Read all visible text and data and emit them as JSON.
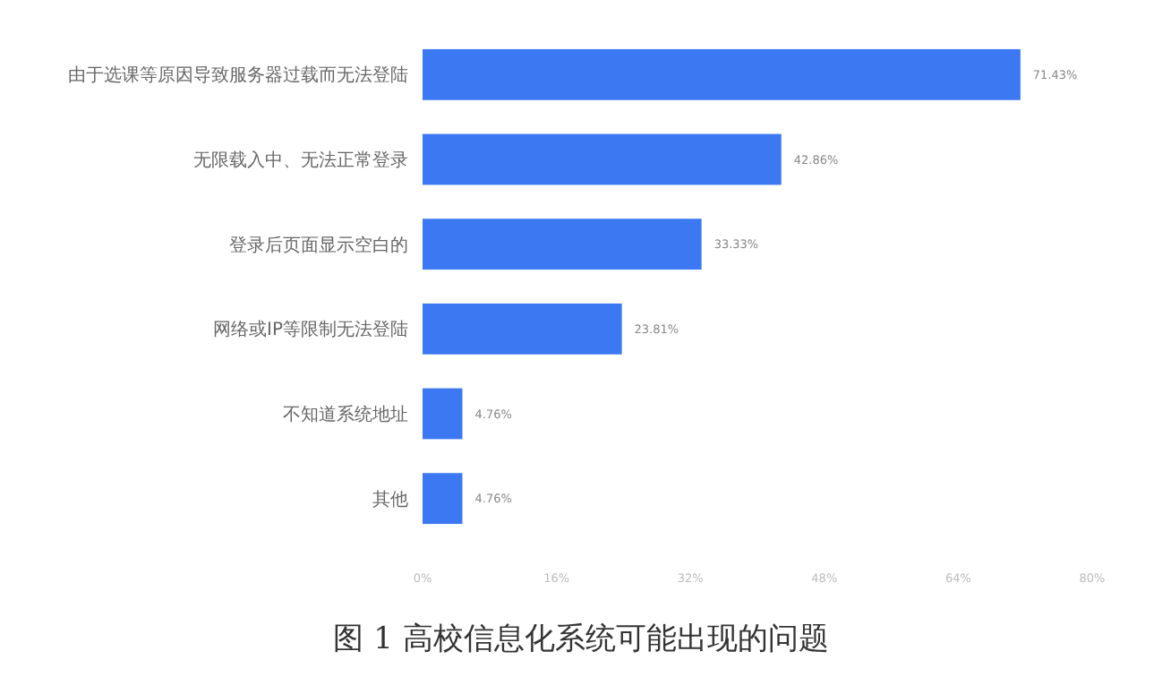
{
  "chart_data": {
    "type": "bar",
    "orientation": "horizontal",
    "title": "图 1 高校信息化系统可能出现的问题",
    "categories": [
      "由于选课等原因导致服务器过载而无法登陆",
      "无限载入中、无法正常登录",
      "登录后页面显示空白的",
      "网络或IP等限制无法登陆",
      "不知道系统地址",
      "其他"
    ],
    "values": [
      71.43,
      42.86,
      33.33,
      23.81,
      4.76,
      4.76
    ],
    "value_labels": [
      "71.43%",
      "42.86%",
      "33.33%",
      "23.81%",
      "4.76%",
      "4.76%"
    ],
    "color": "#3b78f2",
    "xlim": [
      0,
      80
    ],
    "xticks": [
      {
        "value": 0,
        "label": "0%"
      },
      {
        "value": 16,
        "label": "16%"
      },
      {
        "value": 32,
        "label": "32%"
      },
      {
        "value": 48,
        "label": "48%"
      },
      {
        "value": 64,
        "label": "64%"
      },
      {
        "value": 80,
        "label": "80%"
      }
    ],
    "grid": false
  }
}
